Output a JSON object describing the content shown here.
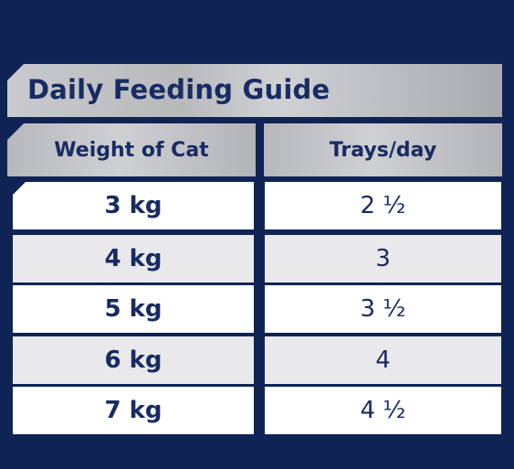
{
  "title": "Daily Feeding Guide",
  "table": {
    "headers": {
      "weight": "Weight of Cat",
      "trays": "Trays/day"
    },
    "rows": [
      {
        "weight": "3 kg",
        "trays": "2 ½"
      },
      {
        "weight": "4 kg",
        "trays": "3"
      },
      {
        "weight": "5 kg",
        "trays": "3 ½"
      },
      {
        "weight": "6 kg",
        "trays": "4"
      },
      {
        "weight": "7 kg",
        "trays": "4 ½"
      }
    ]
  },
  "colors": {
    "background": "#0f2355",
    "text": "#182b63",
    "header_bg": "#c4c5c8",
    "row_white": "#ffffff",
    "row_grey": "#e9e9ec"
  }
}
